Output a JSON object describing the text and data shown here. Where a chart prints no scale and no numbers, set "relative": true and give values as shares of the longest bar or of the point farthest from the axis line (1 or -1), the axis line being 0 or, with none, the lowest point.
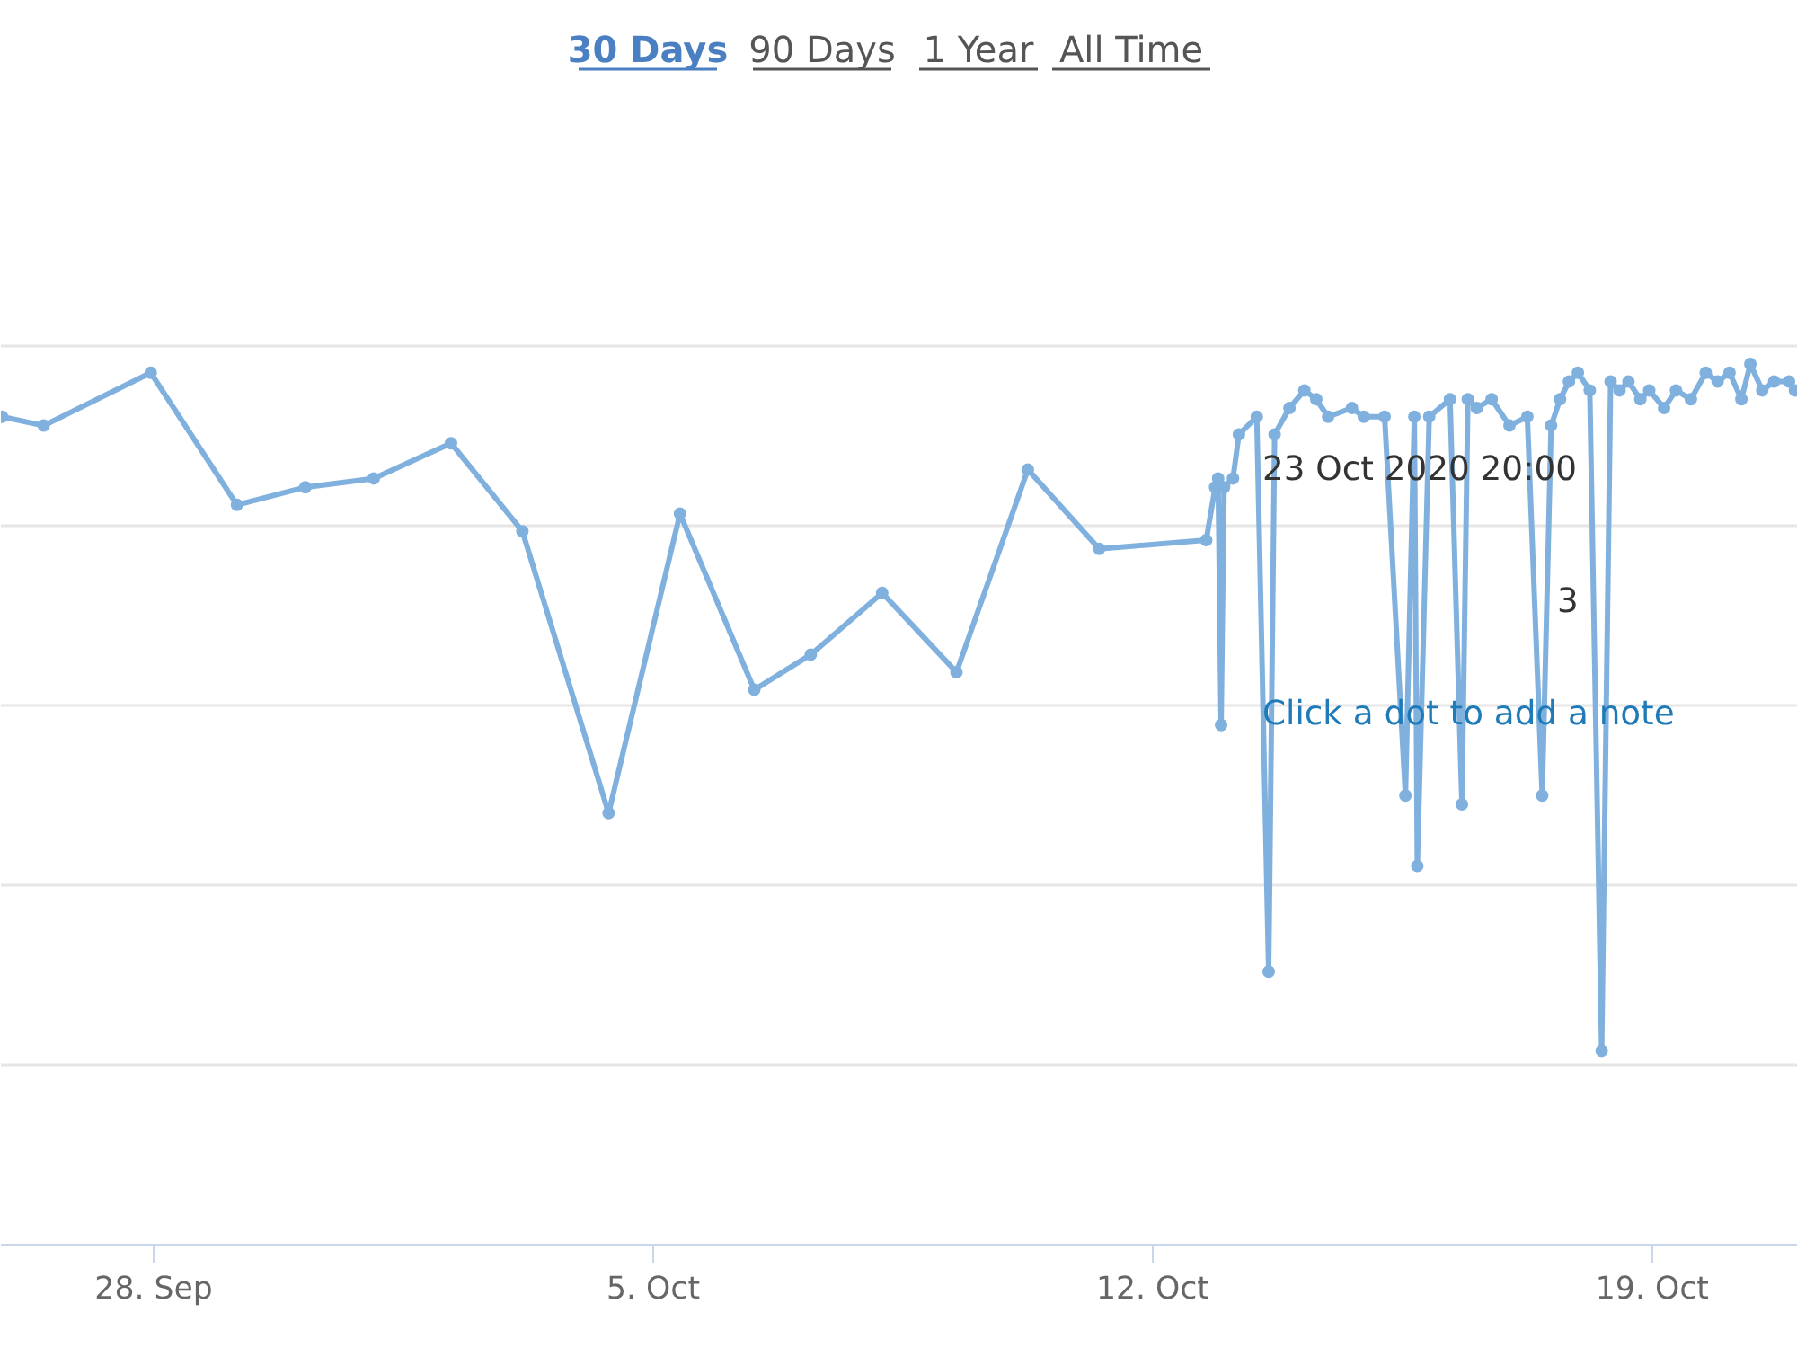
{
  "chart_data": {
    "type": "line",
    "relative": true,
    "marker": "circle",
    "grid": "y",
    "annotations": [
      "30 Days",
      "90 Days",
      "1 Year",
      "All Time",
      "23 Oct 2020 20:00",
      "3",
      "Click a dot to add a note"
    ],
    "xlim": [
      "2020-09-25T20:36",
      "2020-10-21T01:00"
    ],
    "xticks": [
      {
        "value": "2020-09-28",
        "label": "28. Sep"
      },
      {
        "value": "2020-10-05",
        "label": "5. Oct"
      },
      {
        "value": "2020-10-12",
        "label": "12. Oct"
      },
      {
        "value": "2020-10-19",
        "label": "19. Oct"
      }
    ],
    "series": [
      {
        "color": "#80b1de",
        "x": [
          "2020-09-25T21:00",
          "2020-09-26T11:00",
          "2020-09-27T23:00",
          "2020-09-29T04:00",
          "2020-09-30T03:00",
          "2020-10-01T02:00",
          "2020-10-02T04:00",
          "2020-10-03T04:00",
          "2020-10-04T09:00",
          "2020-10-05T09:00",
          "2020-10-06T10:00",
          "2020-10-07T05:00",
          "2020-10-08T05:00",
          "2020-10-09T06:00",
          "2020-10-10T06:00",
          "2020-10-11T06:00",
          "2020-10-12T18:00",
          "2020-10-12T21:00",
          "2020-10-12T22:00",
          "2020-10-12T23:00",
          "2020-10-13T00:00",
          "2020-10-13T03:00",
          "2020-10-13T05:00",
          "2020-10-13T11:00",
          "2020-10-13T15:00",
          "2020-10-13T17:00",
          "2020-10-13T22:00",
          "2020-10-14T03:00",
          "2020-10-14T07:00",
          "2020-10-14T11:00",
          "2020-10-14T19:00",
          "2020-10-14T23:00",
          "2020-10-15T06:00",
          "2020-10-15T13:00",
          "2020-10-15T16:00",
          "2020-10-15T17:00",
          "2020-10-15T21:00",
          "2020-10-16T04:00",
          "2020-10-16T08:00",
          "2020-10-16T10:00",
          "2020-10-16T13:00",
          "2020-10-16T18:00",
          "2020-10-17T00:00",
          "2020-10-17T06:00",
          "2020-10-17T11:00",
          "2020-10-17T14:00",
          "2020-10-17T17:00",
          "2020-10-17T20:00",
          "2020-10-17T23:00",
          "2020-10-18T03:00",
          "2020-10-18T07:00",
          "2020-10-18T10:00",
          "2020-10-18T13:00",
          "2020-10-18T16:00",
          "2020-10-18T20:00",
          "2020-10-18T23:00",
          "2020-10-19T04:00",
          "2020-10-19T08:00",
          "2020-10-19T13:00",
          "2020-10-19T18:00",
          "2020-10-19T22:00",
          "2020-10-20T02:00",
          "2020-10-20T06:00",
          "2020-10-20T09:00",
          "2020-10-20T13:00",
          "2020-10-20T17:00",
          "2020-10-20T22:00",
          "2020-10-21T00:00"
        ],
        "values": [
          0.94,
          0.93,
          0.99,
          0.84,
          0.86,
          0.87,
          0.91,
          0.81,
          0.49,
          0.83,
          0.63,
          0.67,
          0.74,
          0.65,
          0.88,
          0.79,
          0.8,
          0.86,
          0.87,
          0.59,
          0.86,
          0.87,
          0.92,
          0.94,
          0.31,
          0.92,
          0.95,
          0.97,
          0.96,
          0.94,
          0.95,
          0.94,
          0.94,
          0.51,
          0.94,
          0.43,
          0.94,
          0.96,
          0.5,
          0.96,
          0.95,
          0.96,
          0.93,
          0.94,
          0.51,
          0.93,
          0.96,
          0.98,
          0.99,
          0.97,
          0.22,
          0.98,
          0.97,
          0.98,
          0.96,
          0.97,
          0.95,
          0.97,
          0.96,
          0.99,
          0.98,
          0.99,
          0.96,
          1.0,
          0.97,
          0.98,
          0.98,
          0.97
        ]
      }
    ]
  }
}
